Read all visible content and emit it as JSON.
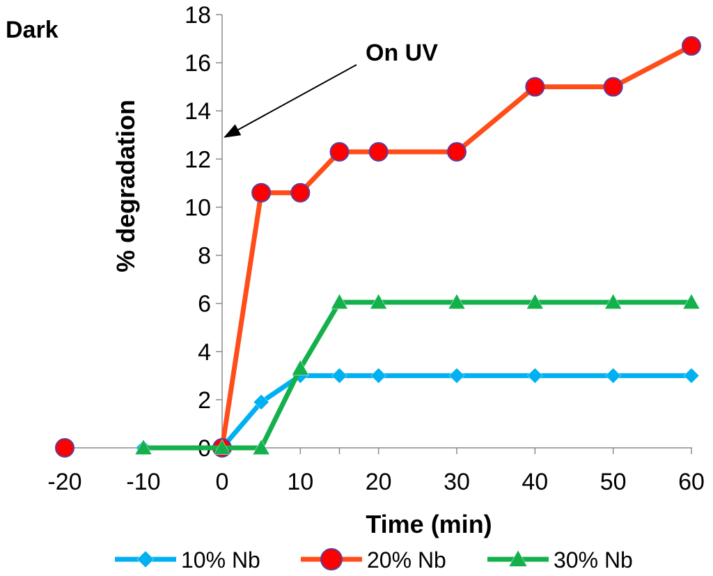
{
  "chart_data": {
    "type": "line",
    "title": "",
    "xlabel": "Time (min)",
    "ylabel": "% degradation",
    "ylim": [
      0,
      18
    ],
    "yticks": [
      "0",
      "2",
      "4",
      "6",
      "8",
      "10",
      "12",
      "14",
      "16",
      "18"
    ],
    "categories": [
      "-20",
      "-10",
      "0",
      "5",
      "10",
      "15",
      "20",
      "30",
      "40",
      "50",
      "60"
    ],
    "xtick_labels": [
      "-20",
      "-10",
      "0",
      "10",
      "20",
      "30",
      "40",
      "50",
      "60"
    ],
    "grid": false,
    "legend_position": "bottom",
    "series": [
      {
        "name": "10% Nb",
        "color": "#00b0f0",
        "marker": "diamond",
        "points": [
          {
            "category": "-10",
            "value": 0
          },
          {
            "category": "0",
            "value": 0
          },
          {
            "category": "5",
            "value": 1.9
          },
          {
            "category": "10",
            "value": 3.0
          },
          {
            "category": "15",
            "value": 3.0
          },
          {
            "category": "20",
            "value": 3.0
          },
          {
            "category": "30",
            "value": 3.0
          },
          {
            "category": "40",
            "value": 3.0
          },
          {
            "category": "50",
            "value": 3.0
          },
          {
            "category": "60",
            "value": 3.0
          }
        ]
      },
      {
        "name": "20% Nb",
        "color": "#ff4d1a",
        "marker": "circle",
        "points": [
          {
            "category": "-20",
            "value": 0,
            "connected": false
          },
          {
            "category": "0",
            "value": 0
          },
          {
            "category": "5",
            "value": 10.6
          },
          {
            "category": "10",
            "value": 10.6
          },
          {
            "category": "15",
            "value": 12.3
          },
          {
            "category": "20",
            "value": 12.3
          },
          {
            "category": "30",
            "value": 12.3
          },
          {
            "category": "40",
            "value": 15.0
          },
          {
            "category": "50",
            "value": 15.0
          },
          {
            "category": "60",
            "value": 16.7
          }
        ]
      },
      {
        "name": "30% Nb",
        "color": "#14b04c",
        "marker": "triangle",
        "points": [
          {
            "category": "-10",
            "value": 0
          },
          {
            "category": "0",
            "value": 0
          },
          {
            "category": "5",
            "value": 0
          },
          {
            "category": "10",
            "value": 3.3
          },
          {
            "category": "15",
            "value": 6.05
          },
          {
            "category": "20",
            "value": 6.05
          },
          {
            "category": "30",
            "value": 6.05
          },
          {
            "category": "40",
            "value": 6.05
          },
          {
            "category": "50",
            "value": 6.05
          },
          {
            "category": "60",
            "value": 6.05
          }
        ]
      }
    ],
    "annotations": {
      "dark_label": "Dark",
      "uv_label": "On UV",
      "uv_arrow_target": {
        "category": "0",
        "value": 13
      }
    }
  }
}
